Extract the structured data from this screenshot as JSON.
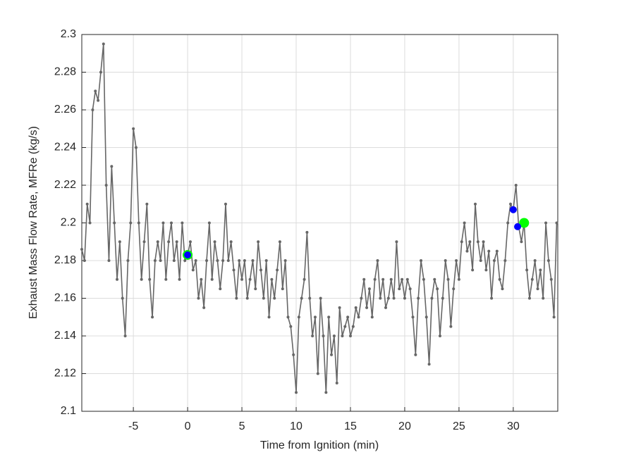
{
  "chart_data": {
    "type": "line",
    "xlabel": "Time from Ignition (min)",
    "ylabel": "Exhaust Mass Flow Rate, MFRe (kg/s)",
    "xlim": [
      -9.75,
      34.1
    ],
    "ylim": [
      2.1,
      2.3
    ],
    "xticks": [
      -5,
      0,
      5,
      10,
      15,
      20,
      25,
      30
    ],
    "yticks": [
      2.1,
      2.12,
      2.14,
      2.16,
      2.18,
      2.2,
      2.22,
      2.24,
      2.26,
      2.28,
      2.3
    ],
    "grid": true,
    "series": [
      {
        "color": "#666666",
        "marker_size": 2,
        "x": [
          -9.75,
          -9.5,
          -9.25,
          -9,
          -8.75,
          -8.5,
          -8.25,
          -8,
          -7.75,
          -7.5,
          -7.25,
          -7,
          -6.75,
          -6.5,
          -6.25,
          -6,
          -5.75,
          -5.5,
          -5.25,
          -5,
          -4.75,
          -4.5,
          -4.25,
          -4,
          -3.75,
          -3.5,
          -3.25,
          -3,
          -2.75,
          -2.5,
          -2.25,
          -2,
          -1.75,
          -1.5,
          -1.25,
          -1,
          -0.75,
          -0.5,
          -0.25,
          0,
          0.25,
          0.5,
          0.75,
          1,
          1.25,
          1.5,
          1.75,
          2,
          2.25,
          2.5,
          2.75,
          3,
          3.25,
          3.5,
          3.75,
          4,
          4.25,
          4.5,
          4.75,
          5,
          5.25,
          5.5,
          5.75,
          6,
          6.25,
          6.5,
          6.75,
          7,
          7.25,
          7.5,
          7.75,
          8,
          8.25,
          8.5,
          8.75,
          9,
          9.25,
          9.5,
          9.75,
          10,
          10.25,
          10.5,
          10.75,
          11,
          11.25,
          11.5,
          11.75,
          12,
          12.25,
          12.5,
          12.75,
          13,
          13.25,
          13.5,
          13.75,
          14,
          14.25,
          14.5,
          14.75,
          15,
          15.25,
          15.5,
          15.75,
          16,
          16.25,
          16.5,
          16.75,
          17,
          17.25,
          17.5,
          17.75,
          18,
          18.25,
          18.5,
          18.75,
          19,
          19.25,
          19.5,
          19.75,
          20,
          20.25,
          20.5,
          20.75,
          21,
          21.25,
          21.5,
          21.75,
          22,
          22.25,
          22.5,
          22.75,
          23,
          23.25,
          23.5,
          23.75,
          24,
          24.25,
          24.5,
          24.75,
          25,
          25.25,
          25.5,
          25.75,
          26,
          26.25,
          26.5,
          26.75,
          27,
          27.25,
          27.5,
          27.75,
          28,
          28.25,
          28.5,
          28.75,
          29,
          29.25,
          29.5,
          29.75,
          30,
          30.25,
          30.5,
          30.75,
          31,
          31.25,
          31.5,
          31.75,
          32,
          32.25,
          32.5,
          32.75,
          33,
          33.25,
          33.5,
          33.75,
          34
        ],
        "values": [
          2.186,
          2.18,
          2.21,
          2.2,
          2.26,
          2.27,
          2.265,
          2.28,
          2.295,
          2.22,
          2.18,
          2.23,
          2.2,
          2.17,
          2.19,
          2.16,
          2.14,
          2.18,
          2.2,
          2.25,
          2.24,
          2.2,
          2.17,
          2.19,
          2.21,
          2.17,
          2.15,
          2.18,
          2.19,
          2.18,
          2.2,
          2.17,
          2.19,
          2.2,
          2.18,
          2.19,
          2.17,
          2.2,
          2.18,
          2.183,
          2.19,
          2.175,
          2.18,
          2.16,
          2.17,
          2.155,
          2.18,
          2.2,
          2.17,
          2.19,
          2.18,
          2.165,
          2.18,
          2.21,
          2.18,
          2.19,
          2.175,
          2.16,
          2.18,
          2.17,
          2.18,
          2.16,
          2.17,
          2.18,
          2.165,
          2.19,
          2.175,
          2.16,
          2.18,
          2.15,
          2.17,
          2.16,
          2.175,
          2.19,
          2.165,
          2.18,
          2.15,
          2.145,
          2.13,
          2.11,
          2.15,
          2.16,
          2.17,
          2.195,
          2.16,
          2.14,
          2.15,
          2.12,
          2.16,
          2.14,
          2.11,
          2.15,
          2.13,
          2.14,
          2.115,
          2.155,
          2.14,
          2.145,
          2.15,
          2.14,
          2.145,
          2.155,
          2.15,
          2.16,
          2.17,
          2.155,
          2.165,
          2.15,
          2.17,
          2.18,
          2.16,
          2.17,
          2.155,
          2.16,
          2.17,
          2.16,
          2.19,
          2.165,
          2.17,
          2.16,
          2.17,
          2.165,
          2.15,
          2.13,
          2.16,
          2.18,
          2.17,
          2.15,
          2.125,
          2.16,
          2.17,
          2.165,
          2.14,
          2.16,
          2.18,
          2.17,
          2.145,
          2.165,
          2.18,
          2.17,
          2.19,
          2.2,
          2.185,
          2.19,
          2.175,
          2.21,
          2.19,
          2.18,
          2.19,
          2.175,
          2.185,
          2.16,
          2.18,
          2.185,
          2.17,
          2.165,
          2.18,
          2.2,
          2.21,
          2.207,
          2.22,
          2.198,
          2.19,
          2.2,
          2.175,
          2.16,
          2.17,
          2.18,
          2.165,
          2.175,
          2.16,
          2.2,
          2.18,
          2.17,
          2.15,
          2.2
        ]
      },
      {
        "color": "#00ff00",
        "marker_size": 7,
        "line": false,
        "x": [
          0,
          31
        ],
        "values": [
          2.183,
          2.2
        ]
      },
      {
        "color": "#0000ff",
        "marker_size": 5,
        "line": false,
        "x": [
          0,
          30,
          30.4
        ],
        "values": [
          2.183,
          2.207,
          2.198
        ]
      }
    ]
  }
}
